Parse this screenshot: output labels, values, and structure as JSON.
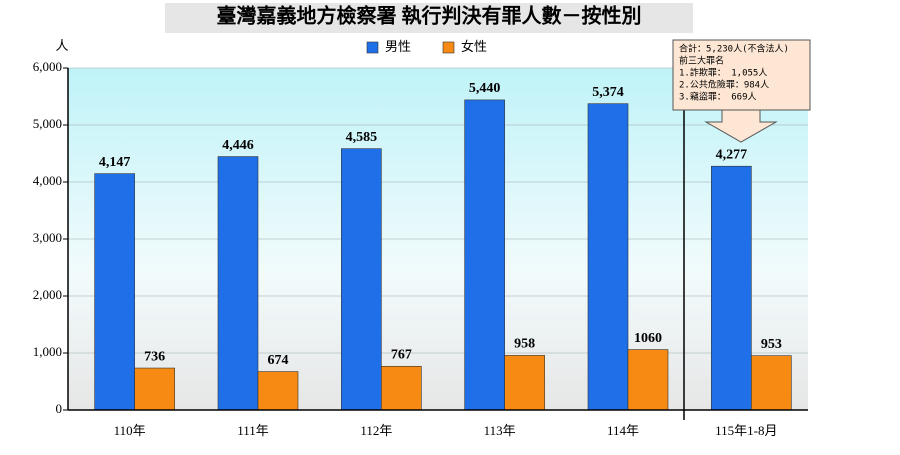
{
  "chart_data": {
    "type": "bar",
    "title": "臺灣嘉義地方檢察署 執行判決有罪人數－按性別",
    "y_label": "人",
    "categories": [
      "110年",
      "111年",
      "112年",
      "113年",
      "114年",
      "115年1-8月"
    ],
    "series": [
      {
        "name": "男性",
        "color": "#1f6fe8",
        "values": [
          4147,
          4446,
          4585,
          5440,
          5374,
          4277
        ],
        "value_labels": [
          "4,147",
          "4,446",
          "4,585",
          "5,440",
          "5,374",
          "4,277"
        ]
      },
      {
        "name": "女性",
        "color": "#f68a12",
        "values": [
          736,
          674,
          767,
          958,
          1060,
          953
        ]
      }
    ],
    "ylim": [
      0,
      6000
    ],
    "yticks": [
      0,
      {
        "value": 1000,
        "label": "1,000"
      },
      {
        "value": 2000,
        "label": "2,000"
      },
      {
        "value": 3000,
        "label": "3,000"
      },
      {
        "value": 4000,
        "label": "4,000"
      },
      {
        "value": 5000,
        "label": "5,000"
      },
      {
        "value": 6000,
        "label": "6,000"
      }
    ],
    "grid": true,
    "legend": "top",
    "annotation": [
      "合計：5,230人(不含法人)",
      "前三大罪名",
      "1.詐欺罪：     1,055人",
      "2.公共危險罪：984人",
      "3.竊盜罪：     669人"
    ]
  }
}
